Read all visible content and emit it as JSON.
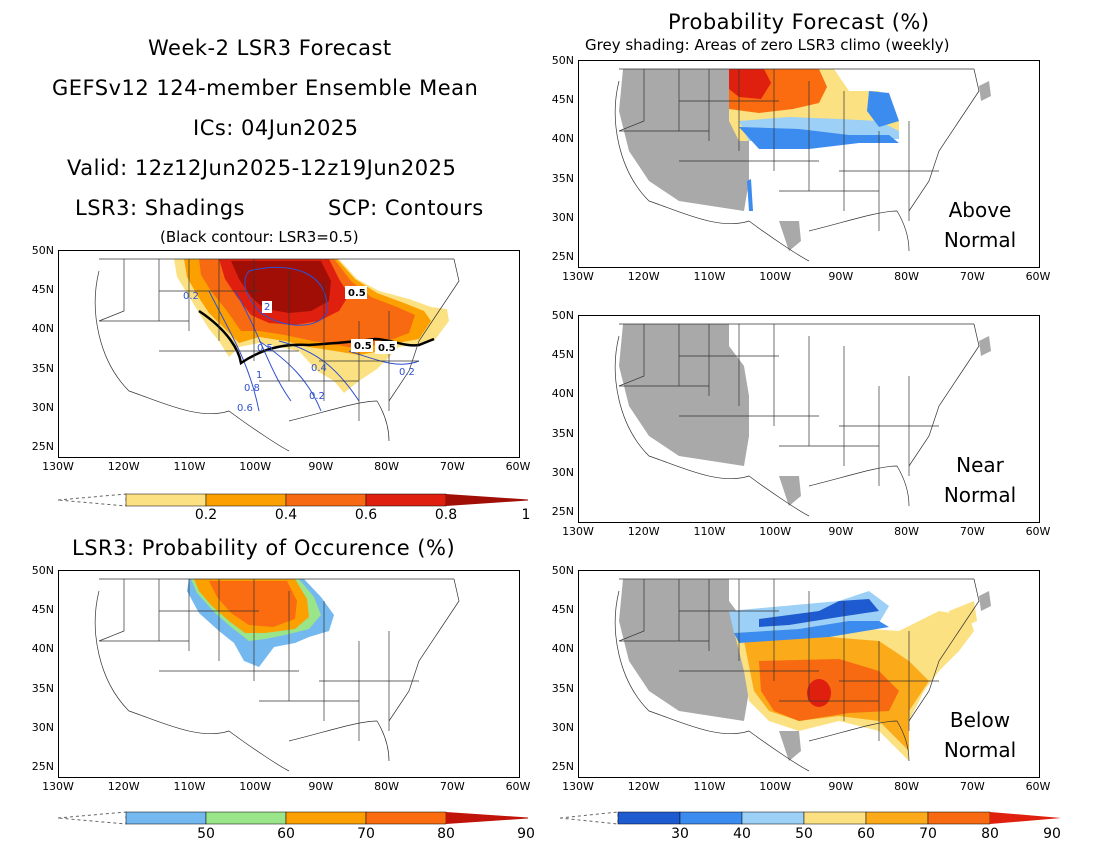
{
  "header": {
    "line1": "Week-2 LSR3 Forecast",
    "line2": "GEFSv12 124-member Ensemble Mean",
    "line3": "ICs: 04Jun2025",
    "line4": "Valid: 12z12Jun2025-12z19Jun2025",
    "line5_left": "LSR3: Shadings",
    "line5_right": "SCP: Contours",
    "note": "(Black contour: LSR3=0.5)"
  },
  "prob_title": "Probability Forecast (%)",
  "prob_subtitle": "Grey shading: Areas of zero LSR3 climo (weekly)",
  "occ_title": "LSR3: Probability of Occurence (%)",
  "lat_labels": [
    "50N",
    "45N",
    "40N",
    "35N",
    "30N",
    "25N"
  ],
  "lon_labels": [
    "130W",
    "120W",
    "110W",
    "100W",
    "90W",
    "80W",
    "70W",
    "60W"
  ],
  "contour_labels": {
    "black": [
      "0.5",
      "0.5",
      "0.5"
    ],
    "blue": [
      "2",
      "0.2",
      "0.5",
      "1",
      "0.8",
      "0.6",
      "0.2",
      "0.4",
      "0.2"
    ]
  },
  "panels": {
    "above": {
      "line1": "Above",
      "line2": "Normal"
    },
    "near": {
      "line1": "Near",
      "line2": "Normal"
    },
    "below": {
      "line1": "Below",
      "line2": "Normal"
    }
  },
  "colorbars": {
    "lsr3": {
      "labels": [
        "0.2",
        "0.4",
        "0.6",
        "0.8",
        "1"
      ],
      "colors": [
        "#fbe182",
        "#fba000",
        "#f86a12",
        "#e0200f",
        "#a00e06"
      ]
    },
    "occurrence": {
      "labels": [
        "50",
        "60",
        "70",
        "80",
        "90"
      ],
      "colors": [
        "#73b8ef",
        "#9ae48a",
        "#fba000",
        "#fa6c0f",
        "#c0140a"
      ]
    },
    "probability": {
      "labels": [
        "30",
        "40",
        "50",
        "60",
        "70",
        "80",
        "90"
      ],
      "colors": [
        "#1f5bd0",
        "#3c8cef",
        "#9cd0f6",
        "#fbe182",
        "#fbaa1a",
        "#f86a12",
        "#e0200f"
      ]
    }
  },
  "colors": {
    "grey_zero_climo": "#a9a9a9",
    "contour_blue": "#3050d0"
  }
}
